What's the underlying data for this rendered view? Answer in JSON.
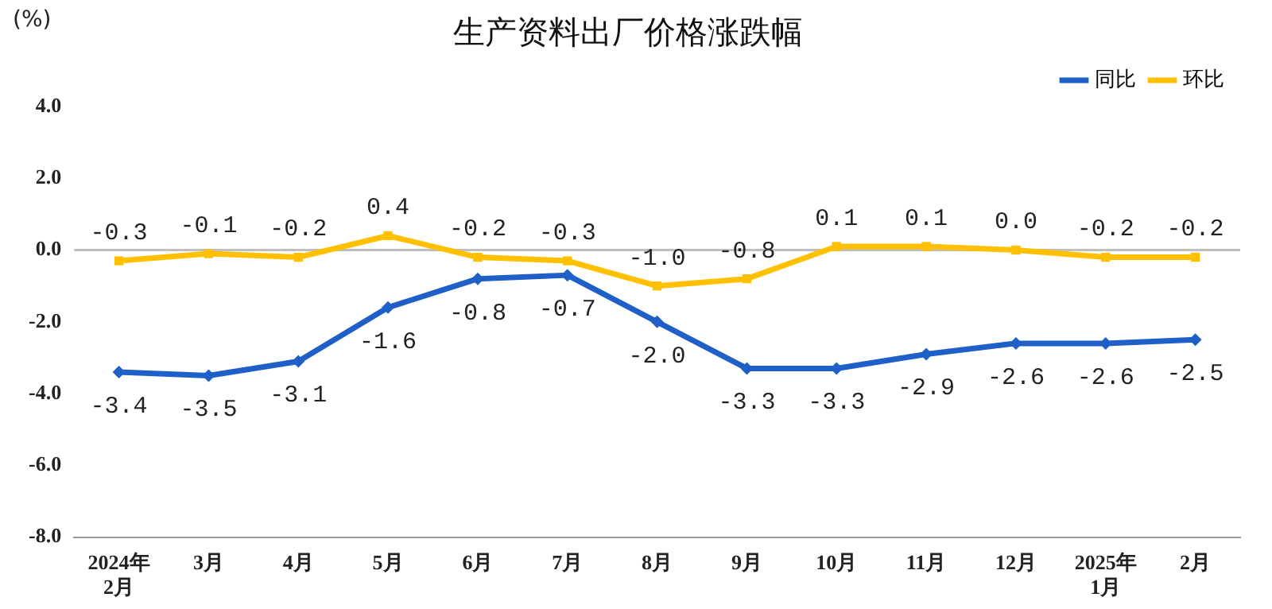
{
  "chart_data": {
    "type": "line",
    "title": "生产资料出厂价格涨跌幅",
    "ylabel": "(%)",
    "categories": [
      "2024年\n2月",
      "3月",
      "4月",
      "5月",
      "6月",
      "7月",
      "8月",
      "9月",
      "10月",
      "11月",
      "12月",
      "2025年\n1月",
      "2月"
    ],
    "series": [
      {
        "name": "同比",
        "color": "#1f5fc8",
        "marker": "diamond",
        "values": [
          -3.4,
          -3.5,
          -3.1,
          -1.6,
          -0.8,
          -0.7,
          -2.0,
          -3.3,
          -3.3,
          -2.9,
          -2.6,
          -2.6,
          -2.5
        ],
        "value_labels": [
          "-3.4",
          "-3.5",
          "-3.1",
          "-1.6",
          "-0.8",
          "-0.7",
          "-2.0",
          "-3.3",
          "-3.3",
          "-2.9",
          "-2.6",
          "-2.6",
          "-2.5"
        ]
      },
      {
        "name": "环比",
        "color": "#ffc000",
        "marker": "square",
        "values": [
          -0.3,
          -0.1,
          -0.2,
          0.4,
          -0.2,
          -0.3,
          -1.0,
          -0.8,
          0.1,
          0.1,
          0.0,
          -0.2,
          -0.2
        ],
        "value_labels": [
          "-0.3",
          "-0.1",
          "-0.2",
          "0.4",
          "-0.2",
          "-0.3",
          "-1.0",
          "-0.8",
          "0.1",
          "0.1",
          "0.0",
          "-0.2",
          "-0.2"
        ]
      }
    ],
    "ylim": [
      -8,
      4
    ],
    "yticks": [
      {
        "value": 4,
        "label": "4.0"
      },
      {
        "value": 2,
        "label": "2.0"
      },
      {
        "value": 0,
        "label": "0.0"
      },
      {
        "value": -2,
        "label": "-2.0"
      },
      {
        "value": -4,
        "label": "-4.0"
      },
      {
        "value": -6,
        "label": "-6.0"
      },
      {
        "value": -8,
        "label": "-8.0"
      }
    ],
    "ref_lines": [
      {
        "axis": "y",
        "value": 0,
        "color": "#bfbfbf"
      }
    ],
    "grid": false,
    "legend": "top right",
    "line_style": "solid"
  }
}
